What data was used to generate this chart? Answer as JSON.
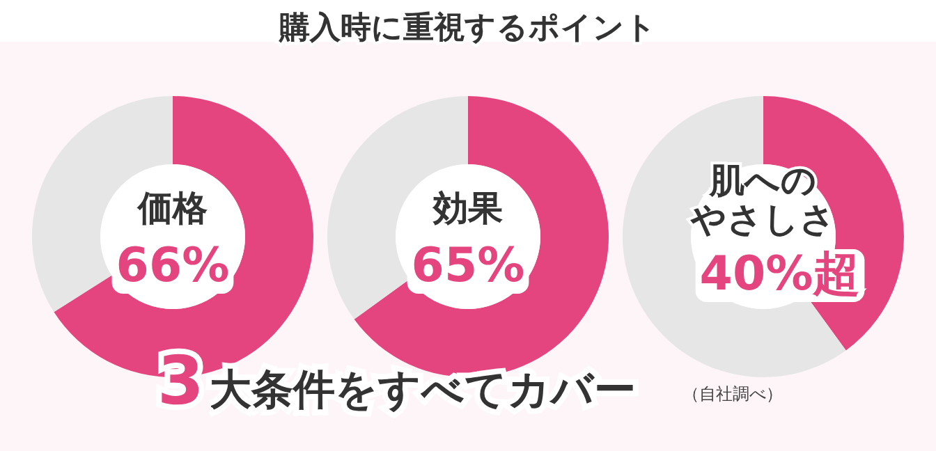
{
  "chart_data": [
    {
      "type": "other",
      "title": "購入時に重視するポイント",
      "annotations": [
        "3大条件をすべてカバー",
        "（自社調べ）"
      ]
    },
    {
      "type": "donut",
      "title": "価格",
      "categories": [
        null,
        null
      ],
      "values": [
        66,
        34
      ],
      "colors": [
        "#e5457f",
        "#e6e6e6"
      ],
      "value_labels": [
        "66%",
        null
      ]
    },
    {
      "type": "donut",
      "title": "効果",
      "categories": [
        null,
        null
      ],
      "values": [
        65,
        35
      ],
      "colors": [
        "#e5457f",
        "#e6e6e6"
      ],
      "value_labels": [
        "65%",
        null
      ]
    },
    {
      "type": "donut",
      "title": "肌へのやさしさ",
      "categories": [
        null,
        null
      ],
      "values": [
        40,
        60
      ],
      "colors": [
        "#e5457f",
        "#e6e6e6"
      ],
      "value_labels": [
        "40%超",
        null
      ]
    }
  ]
}
